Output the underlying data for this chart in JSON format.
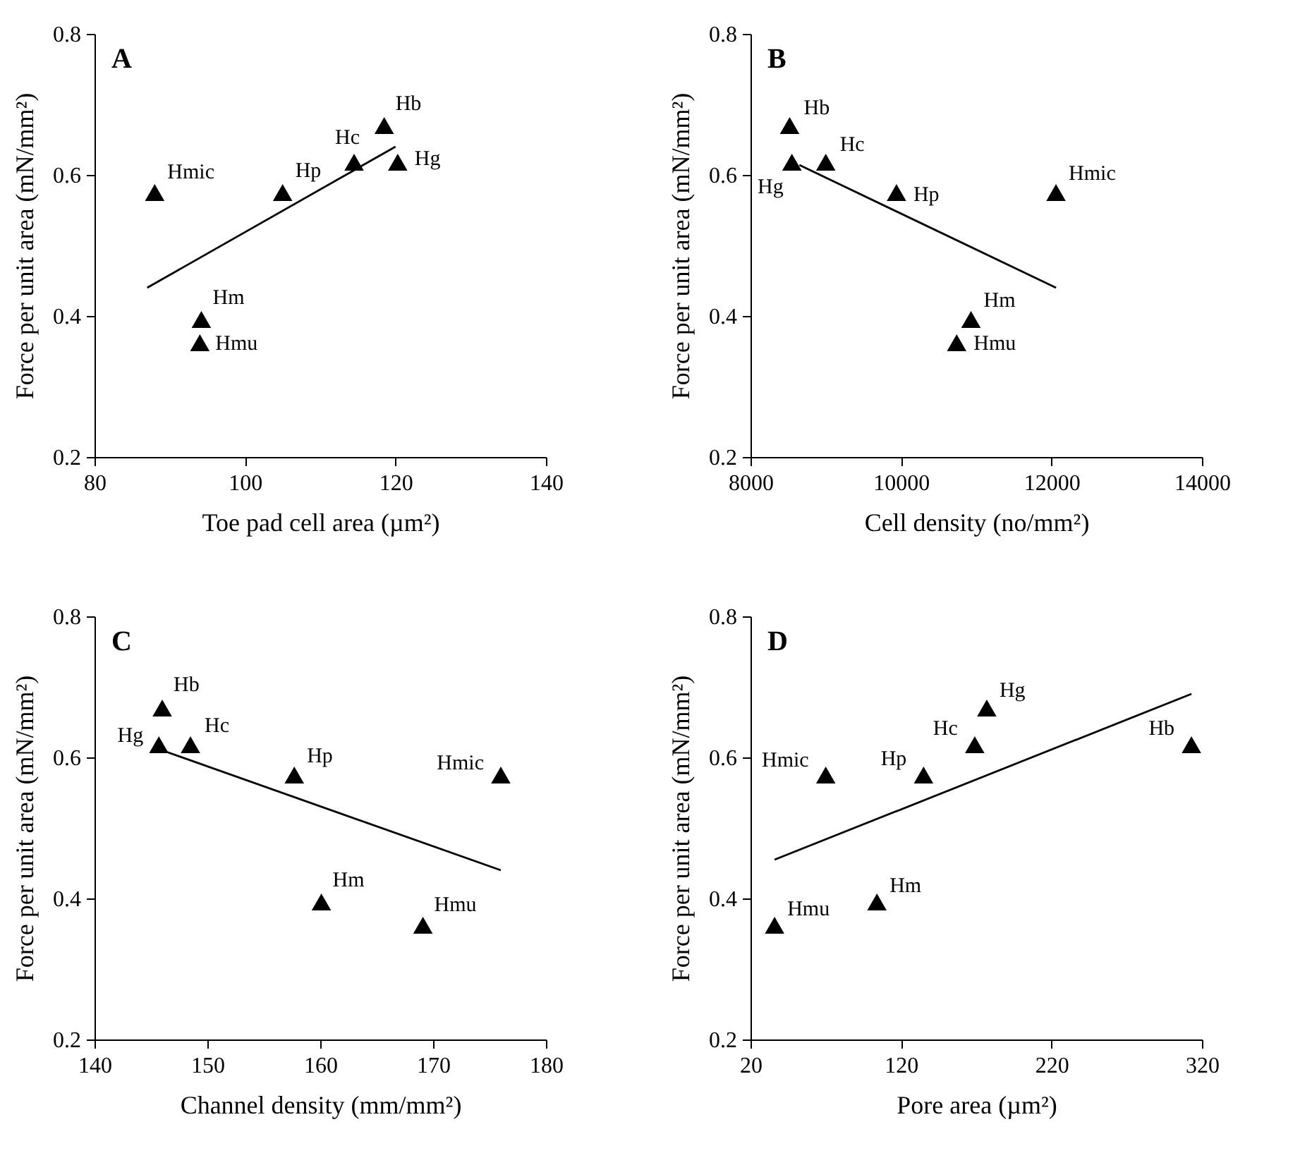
{
  "chart_data": [
    {
      "type": "scatter",
      "title": "A",
      "xlabel": "Toe pad cell area (µm²)",
      "ylabel": "Force per unit area (mN/mm²)",
      "xlim": [
        80,
        140
      ],
      "xticks": [
        80,
        100,
        120,
        140
      ],
      "ylim": [
        0.2,
        0.8
      ],
      "yticks": [
        0.2,
        0.4,
        0.6,
        0.8
      ],
      "series": [
        {
          "marker": "triangle",
          "color": "#000000",
          "x": [
            88,
            105,
            114.5,
            118.5,
            120.3,
            94.2,
            94
          ],
          "values": [
            0.575,
            0.575,
            0.618,
            0.67,
            0.618,
            0.395,
            0.362
          ]
        },
        {
          "type": "line",
          "color": "#000000",
          "x": [
            87,
            120
          ],
          "values": [
            0.44,
            0.64
          ]
        }
      ],
      "annotations": [
        {
          "text": "Hmic",
          "x": 88,
          "y": 0.575
        },
        {
          "text": "Hp",
          "x": 105,
          "y": 0.575
        },
        {
          "text": "Hc",
          "x": 114.5,
          "y": 0.618
        },
        {
          "text": "Hb",
          "x": 118.5,
          "y": 0.67
        },
        {
          "text": "Hg",
          "x": 120.3,
          "y": 0.618
        },
        {
          "text": "Hm",
          "x": 94.2,
          "y": 0.395
        },
        {
          "text": "Hmu",
          "x": 94,
          "y": 0.362
        }
      ]
    },
    {
      "type": "scatter",
      "title": "B",
      "xlabel": "Cell density (no/mm²)",
      "ylabel": "Force per unit area (mN/mm²)",
      "xlim": [
        8000,
        14000
      ],
      "xticks": [
        8000,
        10000,
        12000,
        14000
      ],
      "ylim": [
        0.2,
        0.8
      ],
      "yticks": [
        0.2,
        0.4,
        0.6,
        0.8
      ],
      "series": [
        {
          "marker": "triangle",
          "color": "#000000",
          "x": [
            12060,
            9940,
            9000,
            8520,
            8550,
            10930,
            10740
          ],
          "values": [
            0.575,
            0.575,
            0.618,
            0.67,
            0.618,
            0.395,
            0.362
          ]
        },
        {
          "type": "line",
          "color": "#000000",
          "x": [
            8650,
            12060
          ],
          "values": [
            0.614,
            0.44
          ]
        }
      ],
      "annotations": [
        {
          "text": "Hmic",
          "x": 12060,
          "y": 0.575
        },
        {
          "text": "Hp",
          "x": 9940,
          "y": 0.575
        },
        {
          "text": "Hc",
          "x": 9000,
          "y": 0.618
        },
        {
          "text": "Hb",
          "x": 8520,
          "y": 0.67
        },
        {
          "text": "Hg",
          "x": 8550,
          "y": 0.618
        },
        {
          "text": "Hm",
          "x": 10930,
          "y": 0.395
        },
        {
          "text": "Hmu",
          "x": 10740,
          "y": 0.362
        }
      ]
    },
    {
      "type": "scatter",
      "title": "C",
      "xlabel": "Channel density (mm/mm²)",
      "ylabel": "Force per unit area (mN/mm²)",
      "xlim": [
        140,
        180
      ],
      "xticks": [
        140,
        150,
        160,
        170,
        180
      ],
      "ylim": [
        0.2,
        0.8
      ],
      "yticks": [
        0.2,
        0.4,
        0.6,
        0.8
      ],
      "series": [
        {
          "marker": "triangle",
          "color": "#000000",
          "x": [
            176,
            157.7,
            148.5,
            146,
            145.7,
            160.1,
            169.1
          ],
          "values": [
            0.575,
            0.575,
            0.618,
            0.67,
            0.618,
            0.395,
            0.362
          ]
        },
        {
          "type": "line",
          "color": "#000000",
          "x": [
            146,
            176
          ],
          "values": [
            0.61,
            0.44
          ]
        }
      ],
      "annotations": [
        {
          "text": "Hmic",
          "x": 176,
          "y": 0.575
        },
        {
          "text": "Hp",
          "x": 157.7,
          "y": 0.575
        },
        {
          "text": "Hc",
          "x": 148.5,
          "y": 0.618
        },
        {
          "text": "Hb",
          "x": 146,
          "y": 0.67
        },
        {
          "text": "Hg",
          "x": 145.7,
          "y": 0.618
        },
        {
          "text": "Hm",
          "x": 160.1,
          "y": 0.395
        },
        {
          "text": "Hmu",
          "x": 169.1,
          "y": 0.362
        }
      ]
    },
    {
      "type": "scatter",
      "title": "D",
      "xlabel": "Pore area (µm²)",
      "ylabel": "Force per unit area (mN/mm²)",
      "xlim": [
        20,
        320
      ],
      "xticks": [
        20,
        120,
        220,
        320
      ],
      "ylim": [
        0.2,
        0.8
      ],
      "yticks": [
        0.2,
        0.4,
        0.6,
        0.8
      ],
      "series": [
        {
          "marker": "triangle",
          "color": "#000000",
          "x": [
            70,
            135,
            169,
            313,
            177,
            104,
            36
          ],
          "values": [
            0.575,
            0.575,
            0.618,
            0.618,
            0.67,
            0.395,
            0.362
          ]
        },
        {
          "type": "line",
          "color": "#000000",
          "x": [
            36,
            313
          ],
          "values": [
            0.455,
            0.69
          ]
        }
      ],
      "annotations": [
        {
          "text": "Hmic",
          "x": 70,
          "y": 0.575
        },
        {
          "text": "Hp",
          "x": 135,
          "y": 0.575
        },
        {
          "text": "Hc",
          "x": 169,
          "y": 0.618
        },
        {
          "text": "Hb",
          "x": 313,
          "y": 0.618
        },
        {
          "text": "Hg",
          "x": 177,
          "y": 0.67
        },
        {
          "text": "Hm",
          "x": 104,
          "y": 0.395
        },
        {
          "text": "Hmu",
          "x": 36,
          "y": 0.362
        }
      ]
    }
  ]
}
